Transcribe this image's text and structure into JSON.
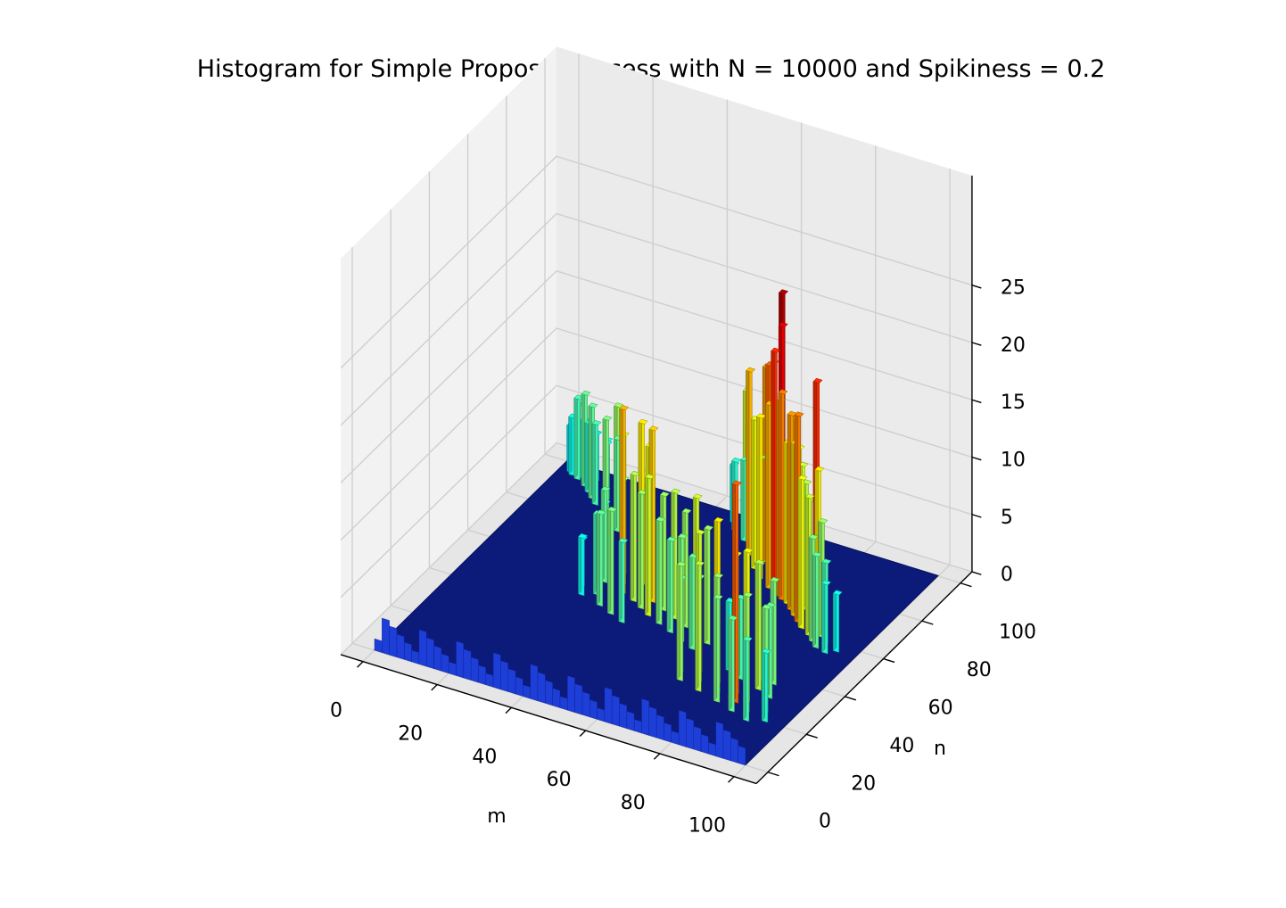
{
  "chart_data": {
    "type": "bar3d",
    "title": "Histogram for Simple Proposal Process with N = 10000 and Spikiness = 0.2",
    "xlabel": "m",
    "ylabel": "n",
    "zlabel": "",
    "xlim": [
      0,
      100
    ],
    "ylim": [
      0,
      100
    ],
    "zlim": [
      0,
      27
    ],
    "xticks": [
      "0",
      "20",
      "40",
      "60",
      "80",
      "100"
    ],
    "yticks": [
      "0",
      "20",
      "40",
      "60",
      "80",
      "100"
    ],
    "zticks": [
      "0",
      "5",
      "10",
      "15",
      "20",
      "25"
    ],
    "grid": true,
    "colormap": "jet",
    "bars": [
      {
        "m": 2,
        "n": 96,
        "z": 4
      },
      {
        "m": 3,
        "n": 95,
        "z": 5
      },
      {
        "m": 4,
        "n": 96,
        "z": 6
      },
      {
        "m": 5,
        "n": 94,
        "z": 7
      },
      {
        "m": 6,
        "n": 95,
        "z": 5
      },
      {
        "m": 8,
        "n": 92,
        "z": 8
      },
      {
        "m": 9,
        "n": 96,
        "z": 4
      },
      {
        "m": 10,
        "n": 90,
        "z": 6
      },
      {
        "m": 12,
        "n": 88,
        "z": 8
      },
      {
        "m": 14,
        "n": 86,
        "z": 7
      },
      {
        "m": 15,
        "n": 90,
        "z": 5
      },
      {
        "m": 18,
        "n": 84,
        "z": 6
      },
      {
        "m": 20,
        "n": 80,
        "z": 9
      },
      {
        "m": 22,
        "n": 82,
        "z": 10
      },
      {
        "m": 24,
        "n": 78,
        "z": 8
      },
      {
        "m": 46,
        "n": 96,
        "z": 5
      },
      {
        "m": 48,
        "n": 93,
        "z": 6
      },
      {
        "m": 50,
        "n": 95,
        "z": 12
      },
      {
        "m": 52,
        "n": 90,
        "z": 7
      },
      {
        "m": 54,
        "n": 92,
        "z": 8
      },
      {
        "m": 55,
        "n": 88,
        "z": 10
      },
      {
        "m": 56,
        "n": 85,
        "z": 16
      },
      {
        "m": 58,
        "n": 88,
        "z": 9
      },
      {
        "m": 59,
        "n": 83,
        "z": 11
      },
      {
        "m": 60,
        "n": 80,
        "z": 13
      },
      {
        "m": 61,
        "n": 84,
        "z": 17
      },
      {
        "m": 62,
        "n": 79,
        "z": 10
      },
      {
        "m": 63,
        "n": 77,
        "z": 14
      },
      {
        "m": 64,
        "n": 82,
        "z": 18
      },
      {
        "m": 65,
        "n": 78,
        "z": 12
      },
      {
        "m": 66,
        "n": 76,
        "z": 19
      },
      {
        "m": 67,
        "n": 74,
        "z": 16
      },
      {
        "m": 68,
        "n": 79,
        "z": 25
      },
      {
        "m": 69,
        "n": 73,
        "z": 21
      },
      {
        "m": 70,
        "n": 75,
        "z": 23
      },
      {
        "m": 71,
        "n": 72,
        "z": 17
      },
      {
        "m": 72,
        "n": 71,
        "z": 18
      },
      {
        "m": 73,
        "n": 76,
        "z": 15
      },
      {
        "m": 74,
        "n": 70,
        "z": 14
      },
      {
        "m": 75,
        "n": 74,
        "z": 13
      },
      {
        "m": 76,
        "n": 68,
        "z": 17
      },
      {
        "m": 77,
        "n": 72,
        "z": 12
      },
      {
        "m": 78,
        "n": 66,
        "z": 15
      },
      {
        "m": 79,
        "n": 70,
        "z": 11
      },
      {
        "m": 80,
        "n": 64,
        "z": 18
      },
      {
        "m": 81,
        "n": 68,
        "z": 10
      },
      {
        "m": 82,
        "n": 62,
        "z": 13
      },
      {
        "m": 84,
        "n": 66,
        "z": 21
      },
      {
        "m": 85,
        "n": 60,
        "z": 12
      },
      {
        "m": 86,
        "n": 63,
        "z": 14
      },
      {
        "m": 87,
        "n": 58,
        "z": 9
      },
      {
        "m": 88,
        "n": 61,
        "z": 10
      },
      {
        "m": 89,
        "n": 56,
        "z": 8
      },
      {
        "m": 90,
        "n": 59,
        "z": 7
      },
      {
        "m": 92,
        "n": 55,
        "z": 6
      },
      {
        "m": 94,
        "n": 57,
        "z": 5
      },
      {
        "m": 30,
        "n": 60,
        "z": 6
      },
      {
        "m": 32,
        "n": 56,
        "z": 8
      },
      {
        "m": 34,
        "n": 62,
        "z": 12
      },
      {
        "m": 36,
        "n": 58,
        "z": 9
      },
      {
        "m": 38,
        "n": 54,
        "z": 16
      },
      {
        "m": 40,
        "n": 60,
        "z": 14
      },
      {
        "m": 42,
        "n": 52,
        "z": 11
      },
      {
        "m": 44,
        "n": 56,
        "z": 13
      },
      {
        "m": 45,
        "n": 50,
        "z": 10
      },
      {
        "m": 46,
        "n": 54,
        "z": 15
      },
      {
        "m": 48,
        "n": 48,
        "z": 12
      },
      {
        "m": 50,
        "n": 52,
        "z": 10
      },
      {
        "m": 52,
        "n": 46,
        "z": 9
      },
      {
        "m": 54,
        "n": 50,
        "z": 11
      },
      {
        "m": 56,
        "n": 44,
        "z": 8
      },
      {
        "m": 58,
        "n": 48,
        "z": 10
      },
      {
        "m": 60,
        "n": 42,
        "z": 9
      },
      {
        "m": 62,
        "n": 46,
        "z": 12
      },
      {
        "m": 64,
        "n": 40,
        "z": 8
      },
      {
        "m": 66,
        "n": 44,
        "z": 10
      },
      {
        "m": 33,
        "n": 50,
        "z": 7
      },
      {
        "m": 36,
        "n": 46,
        "z": 8
      },
      {
        "m": 40,
        "n": 44,
        "z": 9
      },
      {
        "m": 44,
        "n": 42,
        "z": 7
      },
      {
        "m": 28,
        "n": 52,
        "z": 4
      },
      {
        "m": 30,
        "n": 48,
        "z": 5
      },
      {
        "m": 66,
        "n": 30,
        "z": 8
      },
      {
        "m": 68,
        "n": 26,
        "z": 10
      },
      {
        "m": 70,
        "n": 32,
        "z": 12
      },
      {
        "m": 72,
        "n": 28,
        "z": 9
      },
      {
        "m": 74,
        "n": 24,
        "z": 11
      },
      {
        "m": 76,
        "n": 30,
        "z": 14
      },
      {
        "m": 78,
        "n": 26,
        "z": 10
      },
      {
        "m": 80,
        "n": 22,
        "z": 9
      },
      {
        "m": 82,
        "n": 28,
        "z": 12
      },
      {
        "m": 84,
        "n": 24,
        "z": 19
      },
      {
        "m": 85,
        "n": 20,
        "z": 8
      },
      {
        "m": 86,
        "n": 26,
        "z": 13
      },
      {
        "m": 88,
        "n": 22,
        "z": 10
      },
      {
        "m": 90,
        "n": 18,
        "z": 7
      },
      {
        "m": 92,
        "n": 24,
        "z": 9
      },
      {
        "m": 94,
        "n": 20,
        "z": 6
      },
      {
        "m": 86,
        "n": 32,
        "z": 11
      },
      {
        "m": 88,
        "n": 36,
        "z": 9
      },
      {
        "m": 90,
        "n": 30,
        "z": 8
      },
      {
        "m": 84,
        "n": 36,
        "z": 10
      },
      {
        "m": 80,
        "n": 34,
        "z": 7
      },
      {
        "m": 76,
        "n": 36,
        "z": 6
      }
    ]
  }
}
